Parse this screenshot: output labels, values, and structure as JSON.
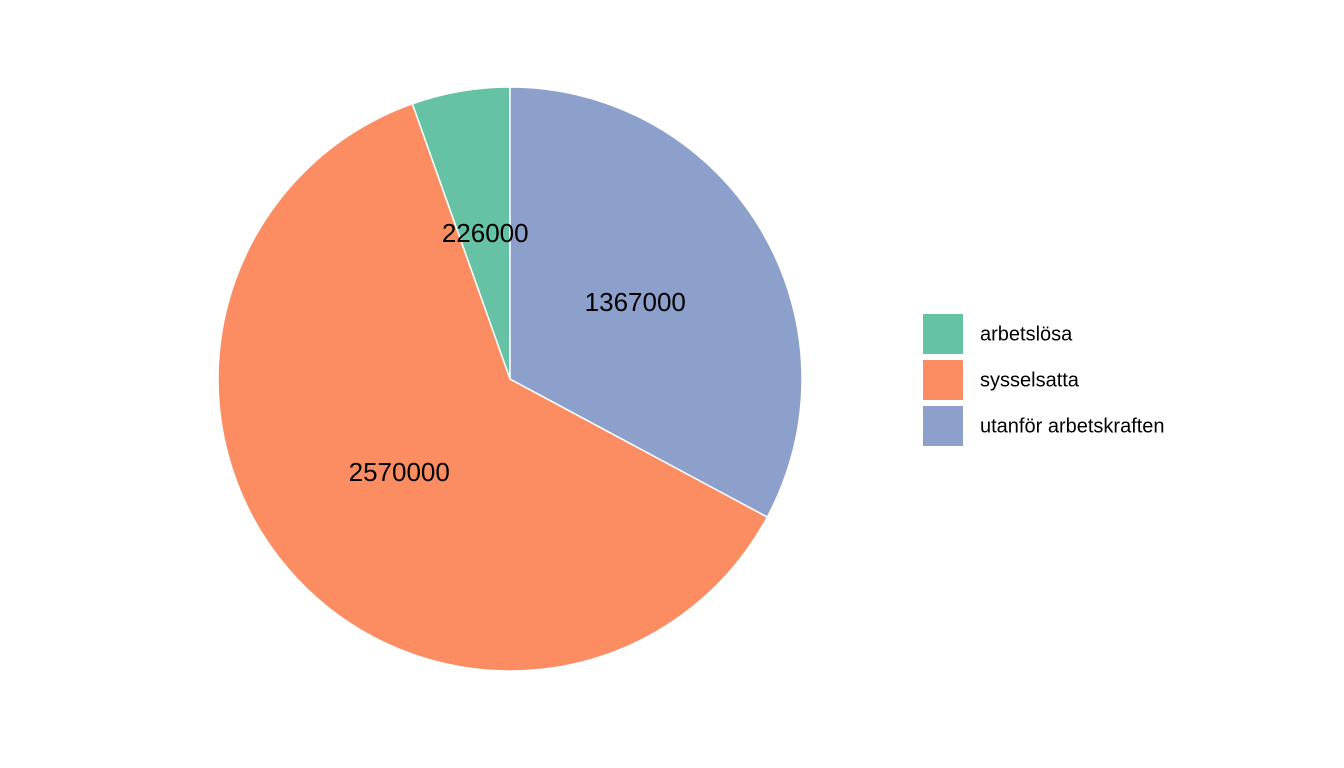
{
  "chart_data": {
    "type": "pie",
    "categories": [
      "arbetslösa",
      "sysselsatta",
      "utanför arbetskraften"
    ],
    "values": [
      226000,
      2570000,
      1367000
    ],
    "colors": [
      "#66c2a5",
      "#fc8d62",
      "#8da0cb"
    ],
    "direction": "counterclockwise",
    "legend": "right"
  }
}
